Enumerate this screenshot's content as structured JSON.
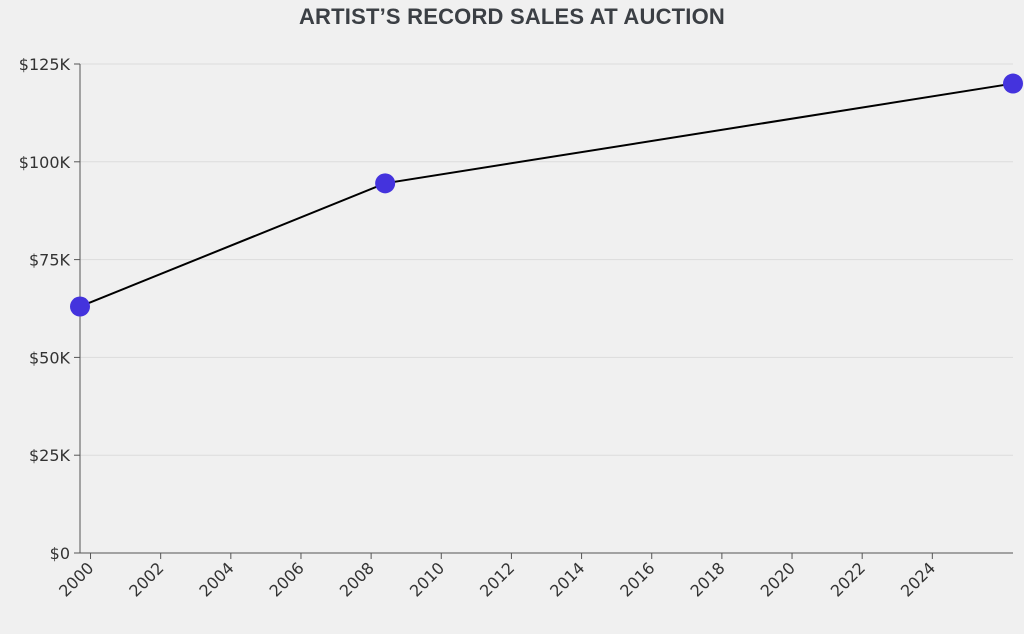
{
  "chart_data": {
    "type": "line",
    "title": "ARTIST’S RECORD SALES AT AUCTION",
    "xlabel": "",
    "ylabel": "",
    "x_ticks": [
      2000,
      2002,
      2004,
      2006,
      2008,
      2010,
      2012,
      2014,
      2016,
      2018,
      2020,
      2022,
      2024
    ],
    "x_tick_labels": [
      "2000",
      "2002",
      "2004",
      "2006",
      "2008",
      "2010",
      "2012",
      "2014",
      "2016",
      "2018",
      "2020",
      "2022",
      "2024"
    ],
    "y_ticks": [
      0,
      25000,
      50000,
      75000,
      100000,
      125000
    ],
    "y_tick_labels": [
      "$0",
      "$25K",
      "$50K",
      "$75K",
      "$100K",
      "$125K"
    ],
    "xlim": [
      1999.7,
      2026.3
    ],
    "ylim": [
      0,
      125000
    ],
    "grid": "horizontal",
    "series": [
      {
        "x": [
          1999.7,
          2008.4,
          2026.3
        ],
        "y": [
          63000,
          94500,
          120000
        ],
        "line_color": "#000000",
        "marker_color": "#4433dd"
      }
    ]
  }
}
